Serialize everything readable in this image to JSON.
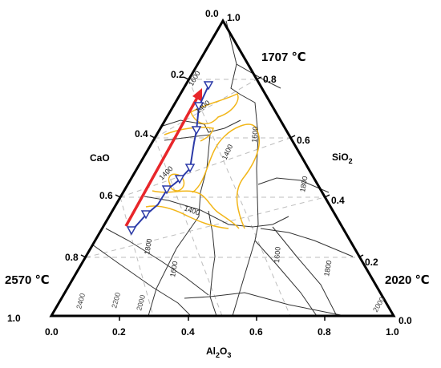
{
  "diagram": {
    "corner_temps": {
      "top": "1707 ℃",
      "left": "2570 ℃",
      "right": "2020 ℃"
    },
    "axes": {
      "cao": {
        "label": "CaO"
      },
      "sio2": {
        "label": "SiO",
        "sub": "2"
      },
      "al2o3": {
        "label_a": "Al",
        "sub_a": "2",
        "label_b": "O",
        "sub_b": "3"
      }
    },
    "left_ticks": [
      "0.0",
      "0.2",
      "0.4",
      "0.6",
      "0.8",
      "1.0"
    ],
    "right_ticks": [
      "1.0",
      "0.8",
      "0.6",
      "0.4",
      "0.2",
      "0.0"
    ],
    "bottom_ticks": [
      "0.0",
      "0.2",
      "0.4",
      "0.6",
      "0.8",
      "1.0"
    ],
    "isotherm_labels": {
      "t1600_top": "1600",
      "t1400_a": "1400",
      "t1600_right": "1600",
      "t1400_b": "1400",
      "t1400_c": "1400",
      "t1400_d": "1400",
      "t1800_right": "1800",
      "t1800_mid": "1800",
      "t1600_mid": "1600",
      "t1600_low": "1600",
      "t1800_low": "1800",
      "t2400": "2400",
      "t2200": "2200",
      "t2000_left": "2000",
      "t2000_right": "2000"
    },
    "colors": {
      "outline": "#000000",
      "boundaries": "#333333",
      "grid": "#bdbdbd",
      "isotherm_1400": "#f2b619",
      "path_red": "#e8262a",
      "path_blue": "#2c3aa8"
    }
  }
}
